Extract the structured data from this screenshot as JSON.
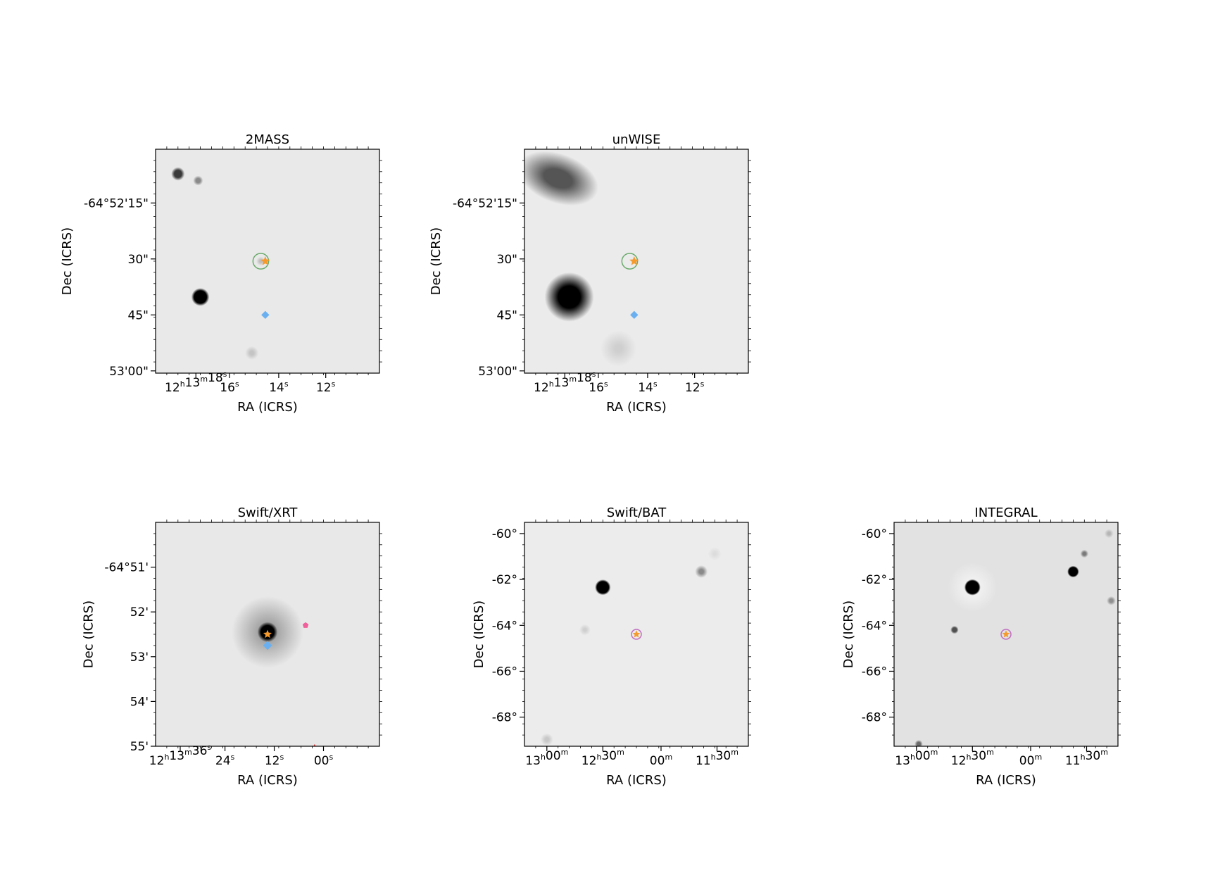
{
  "figure": {
    "panels": [
      {
        "id": "2mass",
        "title": "2MASS",
        "xlabel": "RA (ICRS)",
        "ylabel": "Dec (ICRS)",
        "background": "#e9e9e9",
        "x_ticks": [
          {
            "label": [
              [
                "12",
                "h"
              ],
              [
                "13",
                "m"
              ],
              [
                "18",
                "s"
              ]
            ],
            "pos": 0.18
          },
          {
            "label": [
              [
                "16",
                "s"
              ]
            ],
            "pos": 0.33
          },
          {
            "label": [
              [
                "14",
                "s"
              ]
            ],
            "pos": 0.55
          },
          {
            "label": [
              [
                "12",
                "s"
              ]
            ],
            "pos": 0.76
          }
        ],
        "y_ticks": [
          {
            "label": "-64°52'15\"",
            "pos": 0.24
          },
          {
            "label": "30\"",
            "pos": 0.49
          },
          {
            "label": "45\"",
            "pos": 0.74
          },
          {
            "label": "53'00\"",
            "pos": 0.99
          }
        ],
        "sources": [
          {
            "u": 0.1,
            "v": 0.11,
            "r": 0.03,
            "blur": 0.45,
            "color": "#3a3a3a"
          },
          {
            "u": 0.19,
            "v": 0.14,
            "r": 0.022,
            "blur": 0.55,
            "color": "#8a8a8a"
          },
          {
            "u": 0.2,
            "v": 0.66,
            "r": 0.04,
            "blur": 0.3,
            "color": "#000000"
          },
          {
            "u": 0.43,
            "v": 0.91,
            "r": 0.03,
            "blur": 0.7,
            "color": "#c4c4c4"
          },
          {
            "u": 0.47,
            "v": 0.5,
            "r": 0.02,
            "blur": 0.7,
            "color": "#bdbdbd"
          }
        ],
        "markers": [
          {
            "kind": "circle",
            "u": 0.47,
            "v": 0.5,
            "r": 0.035,
            "color": "#6aaa6a"
          },
          {
            "kind": "star",
            "u": 0.49,
            "v": 0.5,
            "size": 0.022,
            "color": "#f59a2c"
          },
          {
            "kind": "diamond",
            "u": 0.49,
            "v": 0.74,
            "size": 0.018,
            "color": "#6ab0f0"
          }
        ]
      },
      {
        "id": "unwise",
        "title": "unWISE",
        "xlabel": "RA (ICRS)",
        "ylabel": "Dec (ICRS)",
        "background": "#ebebeb",
        "x_ticks": [
          {
            "label": [
              [
                "12",
                "h"
              ],
              [
                "13",
                "m"
              ],
              [
                "18",
                "s"
              ]
            ],
            "pos": 0.18
          },
          {
            "label": [
              [
                "16",
                "s"
              ]
            ],
            "pos": 0.33
          },
          {
            "label": [
              [
                "14",
                "s"
              ]
            ],
            "pos": 0.55
          },
          {
            "label": [
              [
                "12",
                "s"
              ]
            ],
            "pos": 0.76
          }
        ],
        "y_ticks": [
          {
            "label": "-64°52'15\"",
            "pos": 0.24
          },
          {
            "label": "30\"",
            "pos": 0.49
          },
          {
            "label": "45\"",
            "pos": 0.74
          },
          {
            "label": "53'00\"",
            "pos": 0.99
          }
        ],
        "sources": [
          {
            "u": 0.15,
            "v": 0.13,
            "r": 0.11,
            "blur": 0.65,
            "color": "#555555",
            "stretch": 1.7
          },
          {
            "u": 0.2,
            "v": 0.66,
            "r": 0.11,
            "blur": 0.55,
            "color": "#000000"
          },
          {
            "u": 0.42,
            "v": 0.89,
            "r": 0.08,
            "blur": 0.8,
            "color": "#cfcfcf"
          }
        ],
        "markers": [
          {
            "kind": "circle",
            "u": 0.47,
            "v": 0.5,
            "r": 0.035,
            "color": "#6aaa6a"
          },
          {
            "kind": "star",
            "u": 0.49,
            "v": 0.5,
            "size": 0.022,
            "color": "#f59a2c"
          },
          {
            "kind": "diamond",
            "u": 0.49,
            "v": 0.74,
            "size": 0.018,
            "color": "#6ab0f0"
          }
        ]
      },
      {
        "id": "swift-xrt",
        "title": "Swift/XRT",
        "xlabel": "RA (ICRS)",
        "ylabel": "Dec (ICRS)",
        "background": "#e8e8e8",
        "x_ticks": [
          {
            "label": [
              [
                "12",
                "h"
              ],
              [
                "13",
                "m"
              ],
              [
                "36",
                "s"
              ]
            ],
            "pos": 0.11
          },
          {
            "label": [
              [
                "24",
                "s"
              ]
            ],
            "pos": 0.31
          },
          {
            "label": [
              [
                "12",
                "s"
              ]
            ],
            "pos": 0.53
          },
          {
            "label": [
              [
                "00",
                "s"
              ]
            ],
            "pos": 0.75
          }
        ],
        "y_ticks": [
          {
            "label": "-64°51'",
            "pos": 0.2
          },
          {
            "label": "52'",
            "pos": 0.4
          },
          {
            "label": "53'",
            "pos": 0.6
          },
          {
            "label": "54'",
            "pos": 0.8
          },
          {
            "label": "55'",
            "pos": 1.0
          }
        ],
        "sources": [
          {
            "u": 0.5,
            "v": 0.49,
            "r": 0.16,
            "blur": 0.85,
            "color": "#9a9a9a"
          },
          {
            "u": 0.5,
            "v": 0.49,
            "r": 0.045,
            "blur": 0.35,
            "color": "#000000"
          }
        ],
        "markers": [
          {
            "kind": "star",
            "u": 0.5,
            "v": 0.5,
            "size": 0.02,
            "color": "#f59a2c"
          },
          {
            "kind": "diamond",
            "u": 0.5,
            "v": 0.55,
            "size": 0.02,
            "color": "#6ab0f0"
          },
          {
            "kind": "pentagon",
            "u": 0.67,
            "v": 0.46,
            "size": 0.014,
            "color": "#f0609a"
          },
          {
            "kind": "cross",
            "u": 0.71,
            "v": 1.0,
            "size": 0.008,
            "color": "#e04040"
          }
        ]
      },
      {
        "id": "swift-bat",
        "title": "Swift/BAT",
        "xlabel": "RA (ICRS)",
        "ylabel": "Dec (ICRS)",
        "background": "#ececec",
        "x_ticks": [
          {
            "label": [
              [
                "13",
                "h"
              ],
              [
                "00",
                "m"
              ]
            ],
            "pos": 0.1
          },
          {
            "label": [
              [
                "12",
                "h"
              ],
              [
                "30",
                "m"
              ]
            ],
            "pos": 0.35
          },
          {
            "label": [
              [
                "00",
                "m"
              ]
            ],
            "pos": 0.61
          },
          {
            "label": [
              [
                "11",
                "h"
              ],
              [
                "30",
                "m"
              ]
            ],
            "pos": 0.86
          }
        ],
        "y_ticks": [
          {
            "label": "-60°",
            "pos": 0.05
          },
          {
            "label": "-62°",
            "pos": 0.255
          },
          {
            "label": "-64°",
            "pos": 0.46
          },
          {
            "label": "-66°",
            "pos": 0.665
          },
          {
            "label": "-68°",
            "pos": 0.87
          }
        ],
        "sources": [
          {
            "u": 0.35,
            "v": 0.29,
            "r": 0.035,
            "blur": 0.25,
            "color": "#000000"
          },
          {
            "u": 0.79,
            "v": 0.22,
            "r": 0.028,
            "blur": 0.65,
            "color": "#8a8a8a"
          },
          {
            "u": 0.27,
            "v": 0.48,
            "r": 0.025,
            "blur": 0.75,
            "color": "#cfcfcf"
          },
          {
            "u": 0.85,
            "v": 0.14,
            "r": 0.03,
            "blur": 0.8,
            "color": "#dcdcdc"
          },
          {
            "u": 0.1,
            "v": 0.97,
            "r": 0.028,
            "blur": 0.7,
            "color": "#c8c8c8"
          }
        ],
        "markers": [
          {
            "kind": "circle",
            "u": 0.5,
            "v": 0.5,
            "r": 0.022,
            "color": "#c070c0"
          },
          {
            "kind": "star",
            "u": 0.5,
            "v": 0.5,
            "size": 0.018,
            "color": "#f59a2c"
          }
        ]
      },
      {
        "id": "integral",
        "title": "INTEGRAL",
        "xlabel": "RA (ICRS)",
        "ylabel": "Dec (ICRS)",
        "background": "#e2e2e2",
        "x_ticks": [
          {
            "label": [
              [
                "13",
                "h"
              ],
              [
                "00",
                "m"
              ]
            ],
            "pos": 0.1
          },
          {
            "label": [
              [
                "12",
                "h"
              ],
              [
                "30",
                "m"
              ]
            ],
            "pos": 0.35
          },
          {
            "label": [
              [
                "00",
                "m"
              ]
            ],
            "pos": 0.61
          },
          {
            "label": [
              [
                "11",
                "h"
              ],
              [
                "30",
                "m"
              ]
            ],
            "pos": 0.86
          }
        ],
        "y_ticks": [
          {
            "label": "-60°",
            "pos": 0.05
          },
          {
            "label": "-62°",
            "pos": 0.255
          },
          {
            "label": "-64°",
            "pos": 0.46
          },
          {
            "label": "-66°",
            "pos": 0.665
          },
          {
            "label": "-68°",
            "pos": 0.87
          }
        ],
        "sources": [
          {
            "u": 0.35,
            "v": 0.29,
            "r": 0.11,
            "blur": 0.85,
            "color": "#f4f4f4"
          },
          {
            "u": 0.35,
            "v": 0.29,
            "r": 0.036,
            "blur": 0.2,
            "color": "#000000"
          },
          {
            "u": 0.8,
            "v": 0.22,
            "r": 0.026,
            "blur": 0.25,
            "color": "#000000"
          },
          {
            "u": 0.27,
            "v": 0.48,
            "r": 0.018,
            "blur": 0.45,
            "color": "#505050"
          },
          {
            "u": 0.85,
            "v": 0.14,
            "r": 0.018,
            "blur": 0.6,
            "color": "#7a7a7a"
          },
          {
            "u": 0.97,
            "v": 0.35,
            "r": 0.02,
            "blur": 0.6,
            "color": "#909090"
          },
          {
            "u": 0.96,
            "v": 0.05,
            "r": 0.02,
            "blur": 0.7,
            "color": "#b5b5b5"
          },
          {
            "u": 0.11,
            "v": 0.99,
            "r": 0.018,
            "blur": 0.55,
            "color": "#6a6a6a"
          }
        ],
        "markers": [
          {
            "kind": "circle",
            "u": 0.5,
            "v": 0.5,
            "r": 0.022,
            "color": "#c070c0"
          },
          {
            "kind": "star",
            "u": 0.5,
            "v": 0.5,
            "size": 0.018,
            "color": "#f59a2c"
          }
        ]
      }
    ]
  },
  "chart_data": [
    {
      "type": "heatmap",
      "title": "2MASS",
      "xlabel": "RA (ICRS)",
      "ylabel": "Dec (ICRS)",
      "x_tick_labels": [
        "12h13m18s",
        "16s",
        "14s",
        "12s"
      ],
      "y_tick_labels": [
        "-64°52'15\"",
        "30\"",
        "45\"",
        "53'00\""
      ]
    },
    {
      "type": "heatmap",
      "title": "unWISE",
      "xlabel": "RA (ICRS)",
      "ylabel": "Dec (ICRS)",
      "x_tick_labels": [
        "12h13m18s",
        "16s",
        "14s",
        "12s"
      ],
      "y_tick_labels": [
        "-64°52'15\"",
        "30\"",
        "45\"",
        "53'00\""
      ]
    },
    {
      "type": "heatmap",
      "title": "Swift/XRT",
      "xlabel": "RA (ICRS)",
      "ylabel": "Dec (ICRS)",
      "x_tick_labels": [
        "12h13m36s",
        "24s",
        "12s",
        "00s"
      ],
      "y_tick_labels": [
        "-64°51'",
        "52'",
        "53'",
        "54'",
        "55'"
      ]
    },
    {
      "type": "heatmap",
      "title": "Swift/BAT",
      "xlabel": "RA (ICRS)",
      "ylabel": "Dec (ICRS)",
      "x_tick_labels": [
        "13h00m",
        "12h30m",
        "00m",
        "11h30m"
      ],
      "y_tick_labels": [
        "-60°",
        "-62°",
        "-64°",
        "-66°",
        "-68°"
      ]
    },
    {
      "type": "heatmap",
      "title": "INTEGRAL",
      "xlabel": "RA (ICRS)",
      "ylabel": "Dec (ICRS)",
      "x_tick_labels": [
        "13h00m",
        "12h30m",
        "00m",
        "11h30m"
      ],
      "y_tick_labels": [
        "-60°",
        "-62°",
        "-64°",
        "-66°",
        "-68°"
      ]
    }
  ]
}
